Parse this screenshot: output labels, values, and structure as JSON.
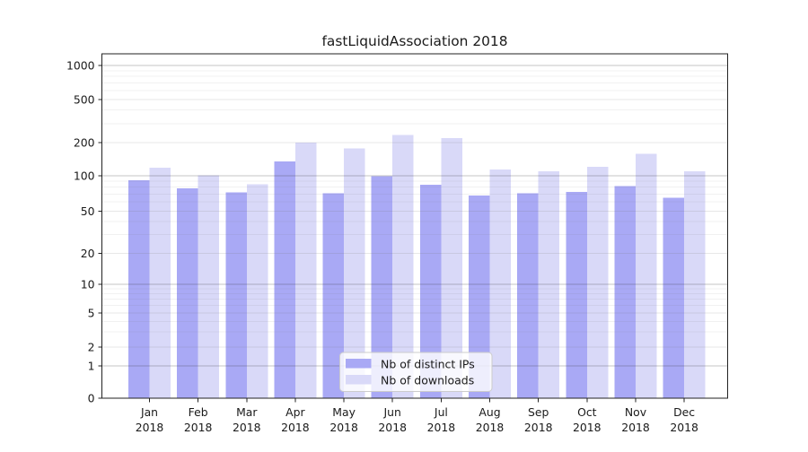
{
  "chart_data": {
    "type": "bar",
    "title": "fastLiquidAssociation 2018",
    "categories": [
      "Jan",
      "Feb",
      "Mar",
      "Apr",
      "May",
      "Jun",
      "Jul",
      "Aug",
      "Sep",
      "Oct",
      "Nov",
      "Dec"
    ],
    "category_year": "2018",
    "series": [
      {
        "name": "Nb of distinct IPs",
        "color": "#a9a9f5",
        "values": [
          92,
          78,
          72,
          135,
          71,
          99,
          84,
          68,
          71,
          73,
          82,
          65
        ]
      },
      {
        "name": "Nb of downloads",
        "color": "#d9d9f8",
        "values": [
          118,
          101,
          85,
          200,
          177,
          235,
          221,
          114,
          110,
          121,
          158,
          110
        ]
      }
    ],
    "yscale": "symlog",
    "yticks": [
      0,
      1,
      2,
      5,
      10,
      20,
      50,
      100,
      200,
      500,
      1000
    ],
    "ylim": [
      0,
      1280
    ],
    "xlabel": "",
    "ylabel": "",
    "grid": "horizontal",
    "legend_position": "lower-center-inside",
    "colors": {
      "major_grid": "#c4c4c4",
      "minor_grid": "#ececec",
      "axis": "#222222",
      "legend_border": "#cccccc"
    }
  }
}
